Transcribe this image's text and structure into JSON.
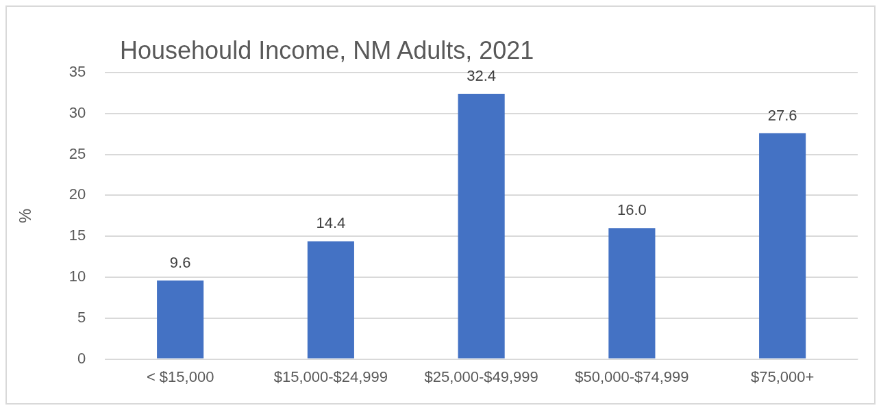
{
  "chart_data": {
    "type": "bar",
    "title": "Househould Income, NM Adults, 2021",
    "ylabel": "%",
    "categories": [
      "< $15,000",
      "$15,000-$24,999",
      "$25,000-$49,999",
      "$50,000-$74,999",
      "$75,000+"
    ],
    "values": [
      9.6,
      14.4,
      32.4,
      16.0,
      27.6
    ],
    "value_labels": [
      "9.6",
      "14.4",
      "32.4",
      "16.0",
      "27.6"
    ],
    "color": "#4472c4",
    "ylim": [
      0,
      35
    ],
    "yticks": [
      0,
      5,
      10,
      15,
      20,
      25,
      30,
      35
    ],
    "grid": "y",
    "legend": false
  }
}
